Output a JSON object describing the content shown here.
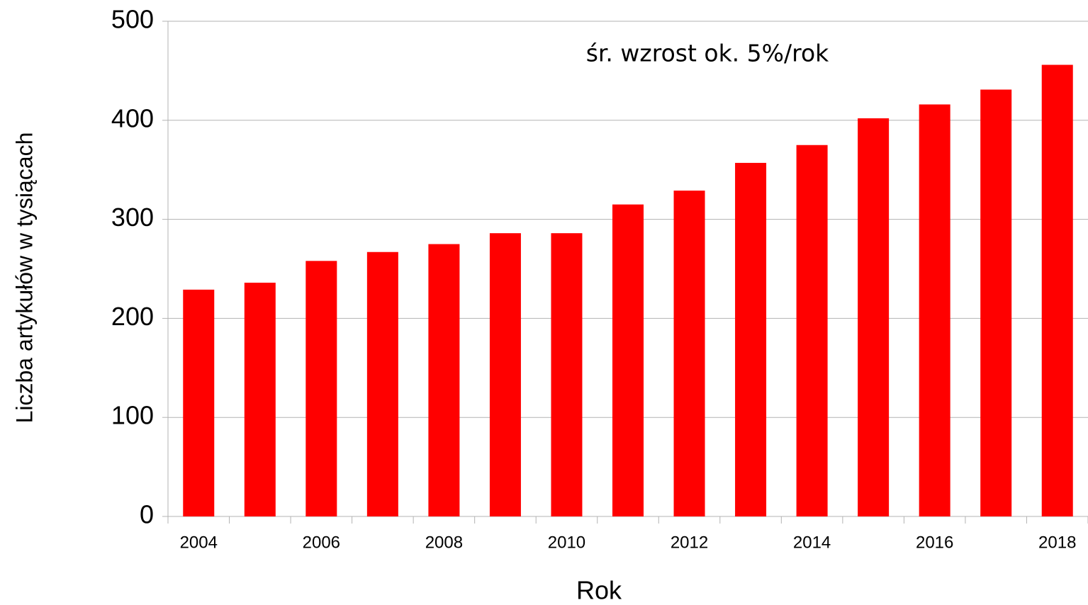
{
  "chart_data": {
    "type": "bar",
    "categories": [
      "2004",
      null,
      "2006",
      null,
      "2008",
      null,
      "2010",
      null,
      "2012",
      null,
      "2014",
      null,
      "2016",
      null,
      "2018"
    ],
    "values": [
      229,
      236,
      258,
      267,
      275,
      286,
      286,
      315,
      329,
      357,
      375,
      402,
      416,
      431,
      456
    ],
    "color": "#ff0000",
    "ylim": [
      0,
      500
    ],
    "yticks": [
      0,
      100,
      200,
      300,
      400,
      500
    ],
    "grid": true,
    "x_label": "Rok",
    "y_label": "Liczba artykułów w tysiącach",
    "annotation": "śr. wzrost ok. 5%/rok"
  }
}
